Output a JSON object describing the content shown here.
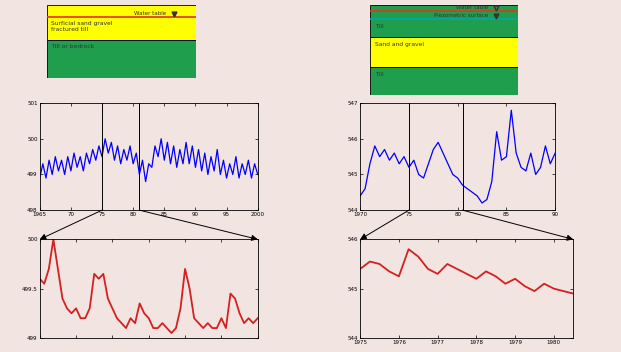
{
  "chart_data": [
    {
      "type": "line",
      "color": "#0000ff",
      "x": [
        1965,
        1965.5,
        1966,
        1966.5,
        1967,
        1967.5,
        1968,
        1968.5,
        1969,
        1969.5,
        1970,
        1970.5,
        1971,
        1971.5,
        1972,
        1972.5,
        1973,
        1973.5,
        1974,
        1974.5,
        1975,
        1975.5,
        1976,
        1976.5,
        1977,
        1977.5,
        1978,
        1978.5,
        1979,
        1979.5,
        1980,
        1980.5,
        1981,
        1981.5,
        1982,
        1982.5,
        1983,
        1983.5,
        1984,
        1984.5,
        1985,
        1985.5,
        1986,
        1986.5,
        1987,
        1987.5,
        1988,
        1988.5,
        1989,
        1989.5,
        1990,
        1990.5,
        1991,
        1991.5,
        1992,
        1992.5,
        1993,
        1993.5,
        1994,
        1994.5,
        1995,
        1995.5,
        1996,
        1996.5,
        1997,
        1997.5,
        1998,
        1998.5,
        1999,
        1999.5,
        2000
      ],
      "values": [
        498.9,
        499.3,
        498.9,
        499.4,
        499.0,
        499.5,
        499.1,
        499.4,
        499.0,
        499.5,
        499.1,
        499.6,
        499.2,
        499.5,
        499.1,
        499.6,
        499.3,
        499.7,
        499.4,
        499.8,
        499.5,
        500.0,
        499.6,
        499.9,
        499.4,
        499.8,
        499.3,
        499.7,
        499.4,
        499.8,
        499.3,
        499.6,
        499.0,
        499.4,
        498.8,
        499.3,
        499.2,
        499.8,
        499.5,
        500.0,
        499.4,
        499.9,
        499.3,
        499.8,
        499.2,
        499.7,
        499.3,
        499.9,
        499.3,
        499.8,
        499.2,
        499.7,
        499.1,
        499.6,
        499.0,
        499.5,
        499.1,
        499.7,
        499.0,
        499.4,
        498.9,
        499.3,
        499.0,
        499.5,
        498.9,
        499.3,
        499.0,
        499.4,
        498.9,
        499.3,
        499.0
      ],
      "xlim": [
        1965,
        2000
      ],
      "xticks": [
        1965,
        {
          "value": 1970,
          "label": "70"
        },
        {
          "value": 1975,
          "label": "75"
        },
        {
          "value": 1980,
          "label": "80"
        },
        {
          "value": 1985,
          "label": "85"
        },
        {
          "value": 1990,
          "label": "90"
        },
        {
          "value": 1995,
          "label": "95"
        },
        2000
      ],
      "ylim": [
        498,
        501
      ],
      "yticks": [
        498,
        499,
        500,
        501
      ],
      "highlight_range": [
        1975,
        1981
      ]
    },
    {
      "type": "line",
      "color": "#d42020",
      "x": [
        1975,
        1975.125,
        1975.25,
        1975.375,
        1975.5,
        1975.625,
        1975.75,
        1975.875,
        1976,
        1976.125,
        1976.25,
        1976.375,
        1976.5,
        1976.625,
        1976.75,
        1976.875,
        1977,
        1977.125,
        1977.25,
        1977.375,
        1977.5,
        1977.625,
        1977.75,
        1977.875,
        1978,
        1978.125,
        1978.25,
        1978.375,
        1978.5,
        1978.625,
        1978.75,
        1978.875,
        1979,
        1979.125,
        1979.25,
        1979.375,
        1979.5,
        1979.625,
        1979.75,
        1979.875,
        1980,
        1980.125,
        1980.25,
        1980.375,
        1980.5,
        1980.625,
        1980.75,
        1980.875,
        1981
      ],
      "values": [
        499.6,
        499.55,
        499.7,
        500.0,
        499.7,
        499.4,
        499.3,
        499.25,
        499.3,
        499.2,
        499.2,
        499.3,
        499.65,
        499.6,
        499.65,
        499.4,
        499.3,
        499.2,
        499.15,
        499.1,
        499.2,
        499.15,
        499.35,
        499.25,
        499.2,
        499.1,
        499.1,
        499.15,
        499.1,
        499.05,
        499.1,
        499.3,
        499.7,
        499.5,
        499.2,
        499.15,
        499.1,
        499.15,
        499.1,
        499.1,
        499.2,
        499.1,
        499.45,
        499.4,
        499.25,
        499.15,
        499.2,
        499.15,
        499.2
      ],
      "xlim": [
        1975,
        1981
      ],
      "xticks": [
        1975,
        1976,
        1977,
        1978,
        1979,
        1980,
        1981
      ],
      "ylim": [
        499,
        500
      ],
      "yticks": [
        499,
        499.5,
        500
      ],
      "tick_labels": "y"
    },
    {
      "type": "line",
      "color": "#0000ff",
      "x": [
        1970,
        1970.5,
        1971,
        1971.5,
        1972,
        1972.5,
        1973,
        1973.5,
        1974,
        1974.5,
        1975,
        1975.5,
        1976,
        1976.5,
        1977,
        1977.5,
        1978,
        1978.5,
        1979,
        1979.5,
        1980,
        1980.5,
        1981,
        1981.5,
        1982,
        1982.5,
        1983,
        1983.5,
        1984,
        1984.5,
        1985,
        1985.5,
        1986,
        1986.5,
        1987,
        1987.5,
        1988,
        1988.5,
        1989,
        1989.5,
        1990
      ],
      "values": [
        544.4,
        544.6,
        545.3,
        545.8,
        545.5,
        545.7,
        545.4,
        545.6,
        545.3,
        545.5,
        545.2,
        545.4,
        545.0,
        544.9,
        545.3,
        545.7,
        545.9,
        545.6,
        545.3,
        545.0,
        544.9,
        544.7,
        544.6,
        544.5,
        544.4,
        544.2,
        544.3,
        544.8,
        546.2,
        545.4,
        545.5,
        546.8,
        545.6,
        545.2,
        545.1,
        545.6,
        545.0,
        545.2,
        545.8,
        545.3,
        545.6
      ],
      "xlim": [
        1970,
        1990
      ],
      "xticks": [
        1970,
        {
          "value": 1975,
          "label": "75"
        },
        {
          "value": 1980,
          "label": "80"
        },
        {
          "value": 1985,
          "label": "85"
        },
        {
          "value": 1990,
          "label": "90"
        }
      ],
      "ylim": [
        544,
        547
      ],
      "yticks": [
        544,
        545,
        546,
        547
      ],
      "highlight_range": [
        1975,
        1980.5
      ]
    },
    {
      "type": "line",
      "color": "#d42020",
      "x": [
        1975,
        1975.25,
        1975.5,
        1975.75,
        1976,
        1976.25,
        1976.5,
        1976.75,
        1977,
        1977.25,
        1977.5,
        1977.75,
        1978,
        1978.25,
        1978.5,
        1978.75,
        1979,
        1979.25,
        1979.5,
        1979.75,
        1980,
        1980.25,
        1980.5
      ],
      "values": [
        545.4,
        545.55,
        545.5,
        545.35,
        545.25,
        545.8,
        545.65,
        545.4,
        545.3,
        545.5,
        545.4,
        545.3,
        545.2,
        545.35,
        545.25,
        545.1,
        545.2,
        545.05,
        544.95,
        545.1,
        545.0,
        544.95,
        544.9
      ],
      "xlim": [
        1975,
        1980.5
      ],
      "xticks": [
        1975,
        1976,
        1977,
        1978,
        1979,
        1980
      ],
      "ylim": [
        544,
        546
      ],
      "yticks": [
        544,
        545,
        546
      ]
    }
  ],
  "diagrams": [
    {
      "layers": [
        {
          "label": "Surficial sand gravel\nfractured till",
          "color": "#ffff00"
        },
        {
          "label": "Till or bedrock",
          "color": "#1f9e4e"
        }
      ],
      "lines": [
        {
          "label": "Water table",
          "color": "#e8321e",
          "marker": "filled_triangle"
        }
      ]
    },
    {
      "layers": [
        {
          "label": "Till",
          "color": "#1f9e4e"
        },
        {
          "label": "Sand and gravel",
          "color": "#ffff00"
        },
        {
          "label": "Till",
          "color": "#1f9e4e"
        }
      ],
      "lines": [
        {
          "label": "Water table",
          "color": "#e8321e",
          "marker": "open_triangle"
        },
        {
          "label": "Piezometric surface",
          "color": "#00a8a8",
          "marker": "filled_triangle"
        }
      ]
    }
  ]
}
